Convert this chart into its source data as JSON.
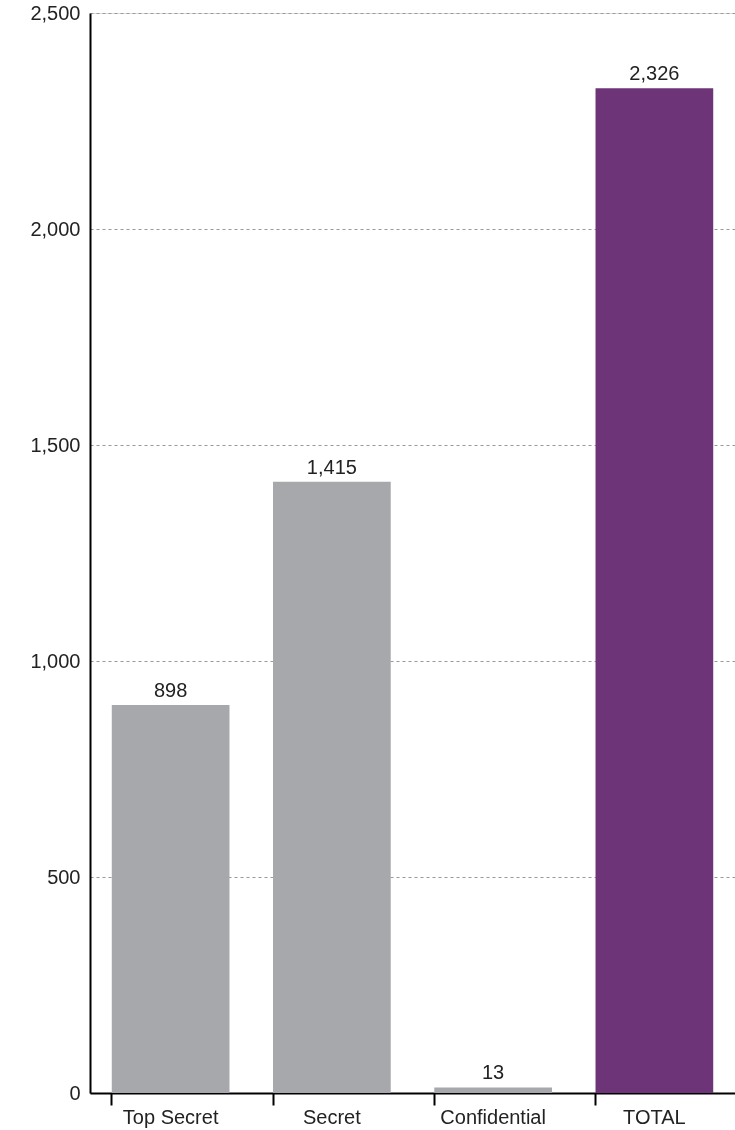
{
  "chart_data": {
    "type": "bar",
    "categories": [
      "Top Secret",
      "Secret",
      "Confidential",
      "TOTAL"
    ],
    "values": [
      898,
      1415,
      13,
      2326
    ],
    "value_labels": [
      "898",
      "1,415",
      "13",
      "2,326"
    ],
    "colors": [
      "#a7a8ab",
      "#a7a8ab",
      "#a7a8ab",
      "#6d3577"
    ],
    "ylim": [
      0,
      2500
    ],
    "yticks": [
      0,
      {
        "value": 500,
        "label": "500"
      },
      {
        "value": 1000,
        "label": "1,000"
      },
      {
        "value": 1500,
        "label": "1,500"
      },
      {
        "value": 2000,
        "label": "2,000"
      },
      {
        "value": 2500,
        "label": "2,500"
      }
    ],
    "grid": "y"
  }
}
